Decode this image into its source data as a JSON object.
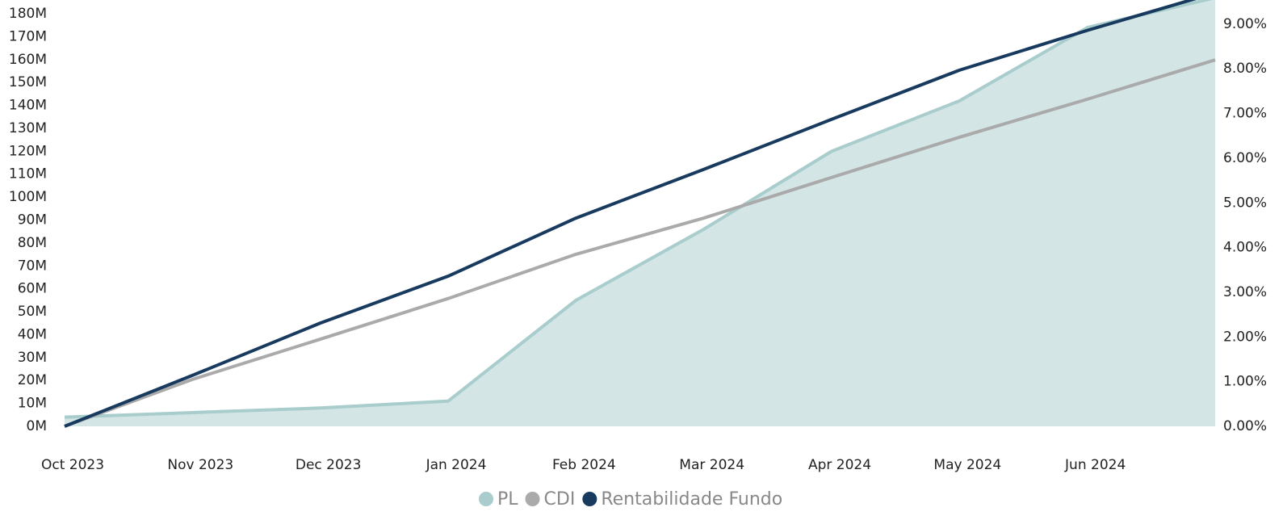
{
  "chart_data": {
    "type": "line",
    "categories": [
      "Oct 2023",
      "Nov 2023",
      "Dec 2023",
      "Jan 2024",
      "Feb 2024",
      "Mar 2024",
      "Apr 2024",
      "May 2024",
      "Jun 2024",
      null
    ],
    "series": [
      {
        "name": "PL",
        "color": "#a9cccc",
        "fill": "#d3e5e5",
        "area": true,
        "axis": "y",
        "values": [
          4,
          6,
          8,
          11,
          55,
          86,
          120,
          142,
          174,
          187
        ]
      },
      {
        "name": "CDI",
        "color": "#aaaaaa",
        "axis": "y2",
        "values": [
          0,
          1.05,
          1.95,
          2.86,
          3.85,
          4.66,
          5.57,
          6.47,
          7.32,
          8.2
        ]
      },
      {
        "name": "Rentabilidade Fundo",
        "color": "#173a5e",
        "axis": "y2",
        "values": [
          0,
          1.14,
          2.31,
          3.36,
          4.66,
          5.75,
          6.87,
          7.97,
          8.86,
          9.7
        ]
      }
    ],
    "ylim": [
      0,
      186
    ],
    "yticks": [
      {
        "value": 0,
        "label": "0M"
      },
      {
        "value": 10,
        "label": "10M"
      },
      {
        "value": 20,
        "label": "20M"
      },
      {
        "value": 30,
        "label": "30M"
      },
      {
        "value": 40,
        "label": "40M"
      },
      {
        "value": 50,
        "label": "50M"
      },
      {
        "value": 60,
        "label": "60M"
      },
      {
        "value": 70,
        "label": "70M"
      },
      {
        "value": 80,
        "label": "80M"
      },
      {
        "value": 90,
        "label": "90M"
      },
      {
        "value": 100,
        "label": "100M"
      },
      {
        "value": 110,
        "label": "110M"
      },
      {
        "value": 120,
        "label": "120M"
      },
      {
        "value": 130,
        "label": "130M"
      },
      {
        "value": 140,
        "label": "140M"
      },
      {
        "value": 150,
        "label": "150M"
      },
      {
        "value": 160,
        "label": "160M"
      },
      {
        "value": 170,
        "label": "170M"
      },
      {
        "value": 180,
        "label": "180M"
      }
    ],
    "y2lim": [
      0,
      9.54
    ],
    "y2ticks": [
      {
        "value": 0,
        "label": "0.00%"
      },
      {
        "value": 1,
        "label": "1.00%"
      },
      {
        "value": 2,
        "label": "2.00%"
      },
      {
        "value": 3,
        "label": "3.00%"
      },
      {
        "value": 4,
        "label": "4.00%"
      },
      {
        "value": 5,
        "label": "5.00%"
      },
      {
        "value": 6,
        "label": "6.00%"
      },
      {
        "value": 7,
        "label": "7.00%"
      },
      {
        "value": 8,
        "label": "8.00%"
      },
      {
        "value": 9,
        "label": "9.00%"
      }
    ],
    "legend": "bottom"
  }
}
